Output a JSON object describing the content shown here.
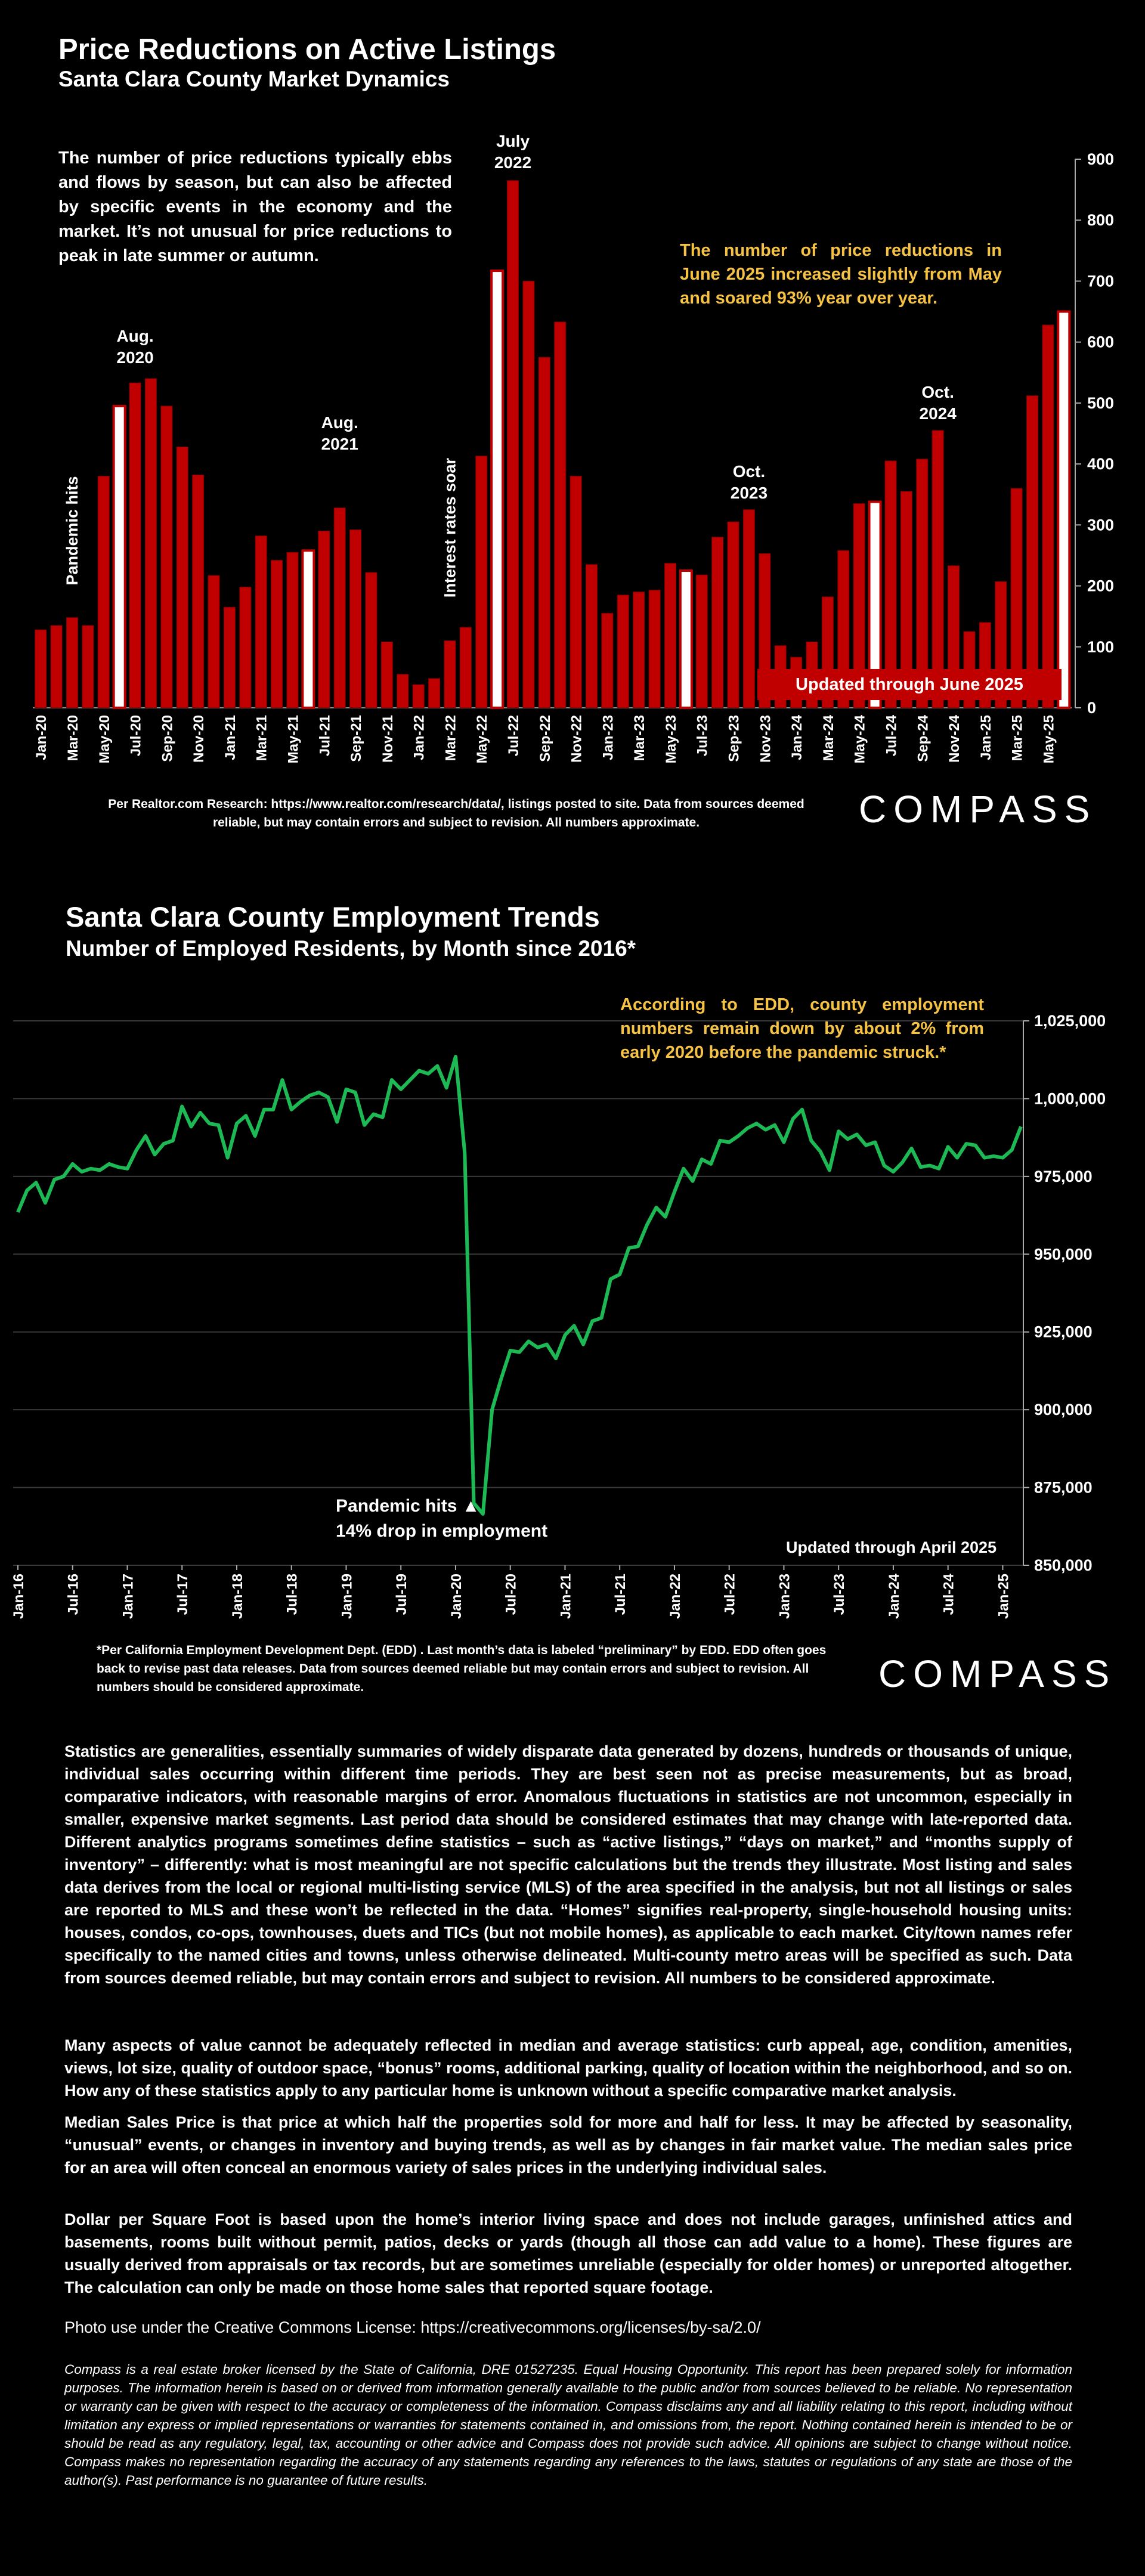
{
  "chart1": {
    "title": "Price Reductions on Active Listings",
    "subtitle": "Santa Clara County Market Dynamics",
    "intro": "The number of price reductions typically ebbs and flows by season, but can also be affected by specific events in the economy and the market. It’s not unusual for price reductions to peak in late summer or autumn.",
    "callout": "The number of price reductions in June 2025 increased slightly from May and soared 93% year over year.",
    "updated": "Updated through June 2025",
    "source": "Per Realtor.com Research:  https://www.realtor.com/research/data/, listings posted to site. Data from sources deemed reliable, but may contain errors and subject to revision. All numbers approximate.",
    "logo": "COMPASS",
    "annotations": {
      "pandemic": "Pandemic hits",
      "aug2020": [
        "Aug.",
        "2020"
      ],
      "aug2021": [
        "Aug.",
        "2021"
      ],
      "rates": "Interest rates soar",
      "jul2022": [
        "July",
        "2022"
      ],
      "oct2023": [
        "Oct.",
        "2023"
      ],
      "oct2024": [
        "Oct.",
        "2024"
      ]
    },
    "colors": {
      "bar": "#c00000",
      "highlight": "#ffffff",
      "callout": "#f5c243"
    }
  },
  "chart2": {
    "title": "Santa Clara County Employment Trends",
    "subtitle": "Number of Employed Residents, by Month since 2016*",
    "callout": "According to EDD, county employment numbers remain down by about 2% from early 2020 before the pandemic struck.*",
    "pandemic_note": [
      "Pandemic hits",
      "14% drop in employment"
    ],
    "pandemic_marker": "▲",
    "updated": "Updated through April 2025",
    "source": "*Per California Employment Development Dept. (EDD) . Last month’s data is labeled “preliminary” by EDD. EDD often goes back to revise past data releases. Data from sources deemed reliable but may contain errors and subject to revision. All numbers should be considered approximate.",
    "logo": "COMPASS",
    "colors": {
      "line": "#1db954"
    }
  },
  "chart_data": [
    {
      "type": "bar",
      "title": "Price Reductions on Active Listings",
      "x_start": "Jan-20",
      "tick_labels": [
        "Jan-20",
        "Mar-20",
        "May-20",
        "Jul-20",
        "Sep-20",
        "Nov-20",
        "Jan-21",
        "Mar-21",
        "May-21",
        "Jul-21",
        "Sep-21",
        "Nov-21",
        "Jan-22",
        "Mar-22",
        "May-22",
        "Jul-22",
        "Sep-22",
        "Nov-22",
        "Jan-23",
        "Mar-23",
        "May-23",
        "Jul-23",
        "Sep-23",
        "Nov-23",
        "Jan-24",
        "Mar-24",
        "May-24",
        "Jul-24",
        "Sep-24",
        "Nov-24",
        "Jan-25",
        "Mar-25",
        "May-25"
      ],
      "values": [
        128,
        135,
        148,
        135,
        380,
        495,
        533,
        540,
        495,
        428,
        382,
        217,
        165,
        198,
        282,
        242,
        255,
        258,
        290,
        328,
        292,
        222,
        108,
        55,
        38,
        48,
        110,
        132,
        413,
        717,
        865,
        700,
        575,
        633,
        380,
        235,
        155,
        185,
        190,
        193,
        237,
        225,
        218,
        280,
        305,
        325,
        253,
        102,
        83,
        108,
        182,
        258,
        335,
        338,
        405,
        355,
        408,
        455,
        233,
        125,
        140,
        207,
        360,
        512,
        628,
        650
      ],
      "highlight_indices": [
        5,
        17,
        29,
        41,
        53,
        65
      ],
      "ylim": [
        0,
        900
      ],
      "yticks": [
        0,
        100,
        200,
        300,
        400,
        500,
        600,
        700,
        800,
        900
      ]
    },
    {
      "type": "line",
      "title": "Santa Clara County Employment Trends",
      "x_start": "Jan-16",
      "tick_labels": [
        "Jan-16",
        "Jul-16",
        "Jan-17",
        "Jul-17",
        "Jan-18",
        "Jul-18",
        "Jan-19",
        "Jul-19",
        "Jan-20",
        "Jul-20",
        "Jan-21",
        "Jul-21",
        "Jan-22",
        "Jul-22",
        "Jan-23",
        "Jul-23",
        "Jan-24",
        "Jul-24",
        "Jan-25"
      ],
      "values": [
        963500,
        970500,
        973000,
        966500,
        974000,
        975000,
        979000,
        976500,
        977500,
        977000,
        979000,
        978000,
        977500,
        983500,
        988000,
        982000,
        985500,
        986500,
        997500,
        991000,
        995500,
        992000,
        991500,
        981000,
        992000,
        994500,
        988000,
        996500,
        996500,
        1006000,
        996500,
        999000,
        1001000,
        1002000,
        1000500,
        992500,
        1003000,
        1002000,
        991500,
        995000,
        994000,
        1006000,
        1003000,
        1006000,
        1009000,
        1008000,
        1010500,
        1003500,
        1013500,
        982500,
        870000,
        866500,
        900000,
        910000,
        919000,
        918500,
        922000,
        920000,
        921000,
        916500,
        924000,
        927000,
        921000,
        928500,
        929500,
        942000,
        943500,
        952000,
        952500,
        959500,
        965000,
        962000,
        970000,
        977500,
        973500,
        980500,
        979000,
        986500,
        986000,
        988000,
        990500,
        992000,
        990000,
        991500,
        986000,
        993500,
        996500,
        986500,
        983000,
        977000,
        989500,
        987000,
        988500,
        985000,
        986000,
        978500,
        976500,
        979500,
        984000,
        978000,
        978500,
        977500,
        984500,
        981000,
        985500,
        985000,
        981000,
        981500,
        981000,
        983500,
        991000
      ],
      "ylim": [
        850000,
        1025000
      ],
      "yticks": [
        850000,
        875000,
        900000,
        925000,
        950000,
        975000,
        1000000,
        1025000
      ],
      "ytick_labels": [
        "850,000",
        "875,000",
        "900,000",
        "925,000",
        "950,000",
        "975,000",
        "1,000,000",
        "1,025,000"
      ]
    }
  ],
  "notes": {
    "p1": "Statistics are generalities, essentially summaries of widely disparate data generated by dozens, hundreds or thousands of unique, individual sales occurring within different time periods. They are best seen not as precise measurements, but as broad, comparative indicators, with reasonable margins of error. Anomalous fluctuations in statistics are not uncommon, especially in smaller, expensive market segments. Last period data should be considered estimates that may change with late-reported data. Different analytics programs sometimes define statistics – such as “active listings,” “days on market,” and “months supply of inventory” – differently: what is most meaningful are not specific calculations but the trends they illustrate. Most listing and sales data derives from the local or regional multi-listing service (MLS) of the area specified in the analysis, but not all listings or sales are reported to MLS and these won’t be reflected in the data. “Homes” signifies real-property, single-household housing units: houses, condos, co-ops, townhouses, duets and TICs (but not mobile homes), as applicable to each market. City/town names refer specifically to the named cities and towns, unless otherwise delineated. Multi-county metro areas will be specified as such. Data from sources deemed reliable, but may contain errors and subject to revision. All numbers to be considered approximate.",
    "p2": "Many aspects of value cannot be adequately reflected in median and average statistics: curb appeal, age, condition, amenities, views, lot size, quality of outdoor space, “bonus” rooms, additional parking, quality of location within the neighborhood, and so on. How any of these statistics apply to any particular home is unknown without a specific comparative market analysis.",
    "p3": "Median Sales Price is that price at which half the properties sold for more and half for less. It may be affected by seasonality, “unusual” events, or changes in inventory and buying trends, as well as by changes in fair market value. The median sales price for an area will often conceal an enormous variety of sales prices in the underlying individual sales.",
    "p4": "Dollar per Square Foot is based upon the home’s interior living space and does not include garages, unfinished attics and basements, rooms built without permit, patios, decks or yards (though all those can add value to a home). These figures are usually derived from appraisals or tax records, but are sometimes unreliable (especially for older homes) or unreported altogether. The calculation can only be made on those home sales that reported square footage.",
    "photo": "Photo use under the Creative Commons License:  https://creativecommons.org/licenses/by-sa/2.0/",
    "disclaimer": "Compass is a real estate broker licensed by the State of California, DRE 01527235. Equal Housing Opportunity. This report has been prepared solely for information purposes. The information herein is based on or derived from information generally available to the public and/or from sources believed to be reliable. No representation or warranty can be given with respect to the accuracy or completeness of the information. Compass disclaims any and all liability relating to this report, including without limitation any express or implied representations or warranties for statements contained in, and omissions from, the report. Nothing contained herein is intended to be or should be read as any regulatory, legal, tax, accounting or other advice and Compass does not provide such advice. All opinions are subject to change without notice. Compass makes no representation regarding the accuracy of any statements regarding any references to the laws, statutes or regulations of any state are those of the author(s). Past performance is no guarantee of future results."
  }
}
